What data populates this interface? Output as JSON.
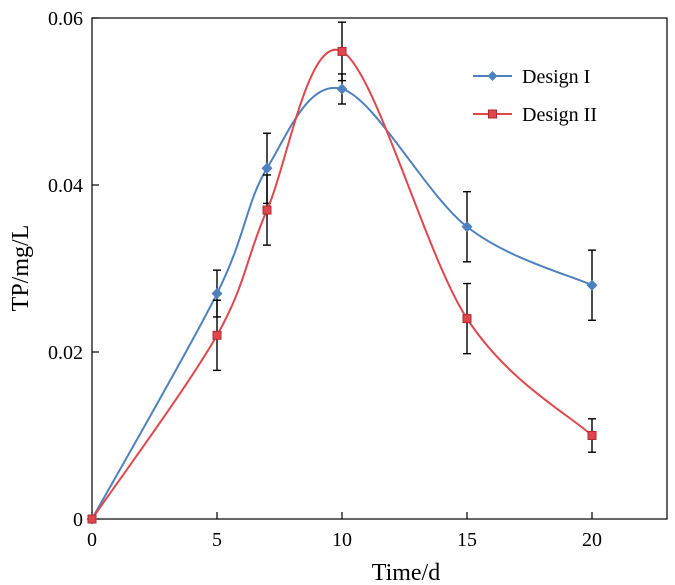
{
  "chart_data": {
    "type": "line",
    "title": "",
    "xlabel": "Time/d",
    "ylabel": "TP/mg/L",
    "xlim": [
      0,
      23
    ],
    "ylim": [
      0,
      0.06
    ],
    "xticks": [
      0,
      5,
      10,
      15,
      20
    ],
    "xtick_labels": [
      "0",
      "5",
      "10",
      "15",
      "20"
    ],
    "yticks": [
      0,
      0.02,
      0.04,
      0.06
    ],
    "ytick_labels": [
      "0",
      "0.02",
      "0.04",
      "0.06"
    ],
    "grid": false,
    "legend_position": "top-right",
    "series": [
      {
        "name": "Design I",
        "color": "#4F81BD",
        "marker": "diamond",
        "x": [
          0,
          5,
          7,
          10,
          15,
          20
        ],
        "y": [
          0,
          0.027,
          0.042,
          0.0515,
          0.035,
          0.028
        ],
        "error": [
          0,
          0.0028,
          0.0042,
          0.0018,
          0.0042,
          0.0042
        ]
      },
      {
        "name": "Design II",
        "color": "#E0474C",
        "marker": "square",
        "x": [
          0,
          5,
          7,
          10,
          15,
          20
        ],
        "y": [
          0,
          0.022,
          0.037,
          0.056,
          0.024,
          0.01
        ],
        "error": [
          0,
          0.0042,
          0.0042,
          0.0035,
          0.0042,
          0.002
        ]
      }
    ]
  }
}
